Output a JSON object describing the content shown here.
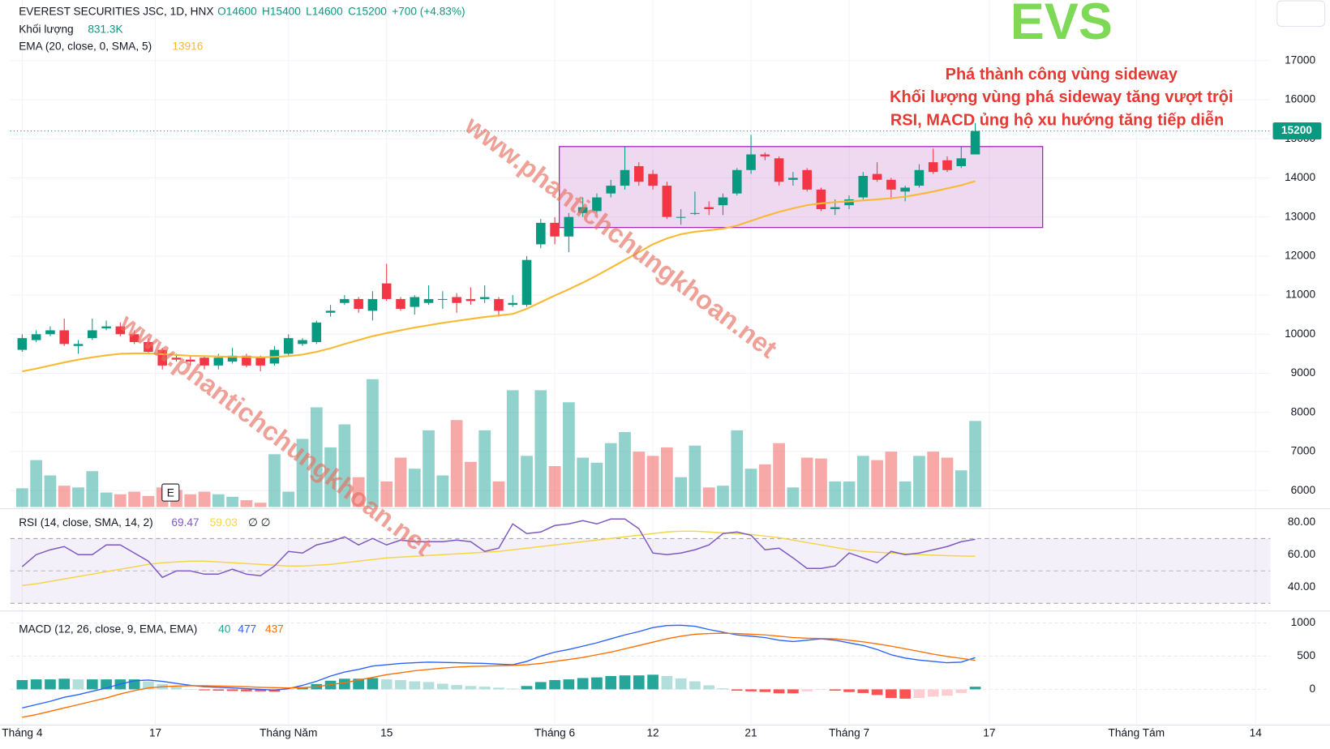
{
  "chart_data": {
    "type": "candlestick",
    "title": "EVEREST SECURITIES JSC, 1D, HNX",
    "ohlc_legend": [
      "O14600",
      "H15400",
      "L14600",
      "C15200",
      "+700 (+4.83%)"
    ],
    "ticker": "EVS",
    "annotations": [
      "Phá thành công vùng sideway",
      "Khối lượng vùng phá sideway tăng vượt trội",
      "RSI, MACD ủng hộ xu hướng tăng tiếp diễn"
    ],
    "watermark": "www.phantichchungkhoan.net",
    "event_marker": "E",
    "up_color": "#089981",
    "down_color": "#f23645",
    "open": [
      9600,
      9850,
      10000,
      10100,
      9700,
      9900,
      10150,
      10200,
      10000,
      9800,
      9600,
      9400,
      9350,
      9400,
      9200,
      9300,
      9450,
      9400,
      9250,
      9500,
      9750,
      9800,
      10550,
      10800,
      10900,
      10600,
      11300,
      10900,
      10700,
      10800,
      10900,
      10950,
      10900,
      10900,
      10900,
      10750,
      10750,
      12300,
      12850,
      12500,
      13100,
      13150,
      13600,
      13800,
      14300,
      14100,
      13800,
      13000,
      13100,
      13250,
      13300,
      13600,
      14200,
      14600,
      14500,
      13950,
      14200,
      13700,
      13200,
      13300,
      13500,
      14100,
      13950,
      13650,
      13800,
      14400,
      14450,
      14300,
      14600
    ],
    "high": [
      10000,
      10100,
      10200,
      10400,
      9850,
      10400,
      10350,
      10300,
      10100,
      9900,
      9650,
      9500,
      9450,
      9450,
      9500,
      9650,
      9500,
      9450,
      9700,
      10000,
      9900,
      10350,
      10750,
      11000,
      10950,
      11100,
      11800,
      10950,
      11000,
      11250,
      11100,
      11050,
      11200,
      11250,
      10950,
      11000,
      12000,
      12950,
      13000,
      13100,
      13500,
      13600,
      13950,
      14800,
      14400,
      14200,
      13900,
      13200,
      13650,
      13400,
      13600,
      14250,
      15100,
      14650,
      14550,
      14150,
      14250,
      13750,
      13450,
      13550,
      14150,
      14400,
      14000,
      13800,
      14350,
      14750,
      14550,
      14800,
      15400
    ],
    "low": [
      9550,
      9800,
      9950,
      9700,
      9500,
      9850,
      10100,
      9950,
      9750,
      9500,
      9100,
      9300,
      9200,
      9100,
      9100,
      9250,
      9150,
      9050,
      9200,
      9450,
      9700,
      9750,
      10450,
      10750,
      10550,
      10350,
      10850,
      10600,
      10500,
      10750,
      10650,
      10550,
      10750,
      10800,
      10450,
      10700,
      10700,
      12200,
      12300,
      12100,
      13000,
      13100,
      13500,
      13700,
      13800,
      13700,
      12950,
      12800,
      13050,
      13050,
      13050,
      13550,
      14100,
      14450,
      13800,
      13800,
      13650,
      13150,
      13050,
      13200,
      13450,
      13900,
      13450,
      13400,
      13750,
      14100,
      14150,
      14250,
      14600
    ],
    "close": [
      9900,
      10000,
      10100,
      9750,
      9750,
      10100,
      10200,
      10000,
      9800,
      9550,
      9200,
      9350,
      9300,
      9200,
      9400,
      9450,
      9200,
      9200,
      9600,
      9900,
      9850,
      10300,
      10600,
      10900,
      10650,
      10900,
      10900,
      10650,
      10950,
      10900,
      10900,
      10800,
      10850,
      10950,
      10600,
      10800,
      11900,
      12850,
      12500,
      13000,
      13250,
      13500,
      13800,
      14200,
      13900,
      13800,
      13000,
      13000,
      13100,
      13200,
      13500,
      14200,
      14600,
      14550,
      13900,
      14000,
      13700,
      13200,
      13250,
      13450,
      14050,
      13950,
      13700,
      13750,
      14200,
      14150,
      14200,
      14500,
      15200
    ],
    "ylim": [
      5580,
      18550
    ],
    "yticks": [
      6000,
      7000,
      8000,
      9000,
      10000,
      11000,
      12000,
      13000,
      14000,
      15000,
      16000,
      17000
    ],
    "xlim": [
      -0.85,
      89.05
    ],
    "xticks": [
      {
        "value": 0,
        "label": "Tháng 4"
      },
      {
        "value": 9.5,
        "label": "17"
      },
      {
        "value": 19,
        "label": "Tháng Năm"
      },
      {
        "value": 26,
        "label": "15"
      },
      {
        "value": 38,
        "label": "Tháng 6"
      },
      {
        "value": 45,
        "label": "12"
      },
      {
        "value": 52,
        "label": "21"
      },
      {
        "value": 59,
        "label": "Tháng 7"
      },
      {
        "value": 69,
        "label": "17"
      },
      {
        "value": 79.5,
        "label": "Tháng Tám"
      },
      {
        "value": 88,
        "label": "14"
      }
    ],
    "grid": true,
    "volume": {
      "name": "Khối lượng",
      "last_label": "831.3K",
      "values": [
        181000,
        453000,
        305000,
        206000,
        189000,
        346000,
        140000,
        123000,
        148000,
        107000,
        189000,
        165000,
        123000,
        148000,
        123000,
        99000,
        66000,
        41000,
        510000,
        148000,
        658000,
        963000,
        576000,
        798000,
        288000,
        1235000,
        247000,
        477000,
        370000,
        741000,
        305000,
        840000,
        436000,
        741000,
        247000,
        1128000,
        494000,
        1128000,
        395000,
        1012000,
        477000,
        428000,
        617000,
        724000,
        535000,
        494000,
        576000,
        288000,
        593000,
        189000,
        206000,
        741000,
        370000,
        412000,
        617000,
        189000,
        477000,
        469000,
        247000,
        247000,
        494000,
        453000,
        535000,
        247000,
        494000,
        535000,
        477000,
        354000,
        831300
      ]
    },
    "ema": {
      "name": "EMA (20, close, 0, SMA, 5)",
      "color": "#f9b935",
      "values": [
        9050,
        9120,
        9200,
        9280,
        9350,
        9410,
        9460,
        9500,
        9510,
        9510,
        9490,
        9470,
        9450,
        9440,
        9430,
        9420,
        9420,
        9410,
        9420,
        9440,
        9480,
        9550,
        9640,
        9750,
        9850,
        9950,
        10030,
        10100,
        10170,
        10230,
        10290,
        10340,
        10390,
        10440,
        10480,
        10520,
        10650,
        10820,
        10990,
        11150,
        11320,
        11500,
        11700,
        11900,
        12100,
        12300,
        12450,
        12560,
        12620,
        12660,
        12700,
        12780,
        12900,
        13020,
        13130,
        13220,
        13300,
        13350,
        13380,
        13400,
        13420,
        13450,
        13480,
        13520,
        13580,
        13650,
        13730,
        13810,
        13916
      ]
    },
    "rsi": {
      "title": "RSI (14, close, SMA, 14, 2)",
      "flags": "∅  ∅",
      "ylim": [
        26.3,
        86.8
      ],
      "yticks": [
        {
          "value": 40,
          "label": "40.00"
        },
        {
          "value": 60,
          "label": "60.00"
        },
        {
          "value": 80,
          "label": "80.00"
        }
      ],
      "series": [
        {
          "color": "#7e57c2",
          "values": [
            52.6,
            60,
            63,
            65,
            60,
            60,
            66,
            66,
            61,
            56,
            46,
            50,
            50,
            48,
            48,
            51,
            48,
            47,
            53,
            62,
            61,
            66,
            68,
            71,
            66,
            70,
            66,
            69,
            68,
            68,
            68,
            69,
            68,
            62,
            64,
            79,
            73,
            74,
            78,
            79,
            81,
            79,
            82,
            82,
            76,
            61,
            60,
            61,
            63,
            66,
            73,
            74,
            72,
            63,
            64,
            58,
            51.5,
            51.5,
            53,
            61,
            58,
            55,
            62,
            60,
            61,
            63,
            65,
            68,
            69.47
          ]
        },
        {
          "color": "#f5d547",
          "values": [
            41,
            42,
            43.5,
            45,
            46.5,
            48,
            49.5,
            51,
            52.5,
            54,
            55,
            55.5,
            56,
            56,
            55.5,
            55,
            54.5,
            54,
            53.5,
            53,
            53,
            53.5,
            54,
            55,
            56,
            57,
            58,
            58.5,
            59,
            59.5,
            60,
            60.5,
            61,
            61.5,
            62,
            63,
            64,
            65,
            66,
            67,
            68,
            69,
            70,
            71,
            72,
            73,
            74,
            74.5,
            74.5,
            74,
            73.5,
            73,
            72.5,
            71.5,
            70.5,
            69,
            67.5,
            66,
            64.5,
            63,
            62,
            61.5,
            61,
            60.5,
            60,
            59.7,
            59.4,
            59.2,
            59.03
          ]
        }
      ]
    },
    "macd": {
      "title": "MACD (12, 26, close, 9, EMA, EMA)",
      "ylim": [
        -526,
        1167
      ],
      "yticks": [
        0,
        500,
        1000
      ],
      "histogram": {
        "color": "#26a69a",
        "colors": [
          "#26a69a",
          "#b2dfdb",
          "#ff5252",
          "#ffcdd2"
        ],
        "values": [
          140,
          150,
          150,
          160,
          150,
          150,
          150,
          150,
          150,
          120,
          80,
          40,
          5,
          -15,
          -20,
          -25,
          -30,
          -30,
          -35,
          -10,
          35,
          80,
          130,
          160,
          160,
          170,
          150,
          140,
          120,
          110,
          85,
          65,
          50,
          40,
          25,
          10,
          50,
          110,
          140,
          150,
          170,
          180,
          200,
          210,
          210,
          220,
          200,
          165,
          120,
          60,
          15,
          -20,
          -30,
          -40,
          -60,
          -60,
          -30,
          -5,
          -20,
          -40,
          -55,
          -85,
          -130,
          -140,
          -130,
          -110,
          -95,
          -55,
          40
        ]
      },
      "series": [
        {
          "color": "#2962ff",
          "values": [
            -280,
            -230,
            -180,
            -120,
            -80,
            -30,
            20,
            80,
            130,
            140,
            120,
            90,
            60,
            40,
            30,
            20,
            10,
            0,
            -10,
            10,
            60,
            120,
            200,
            260,
            300,
            350,
            370,
            390,
            400,
            410,
            405,
            400,
            395,
            390,
            380,
            370,
            420,
            500,
            560,
            600,
            650,
            700,
            760,
            820,
            870,
            930,
            960,
            965,
            950,
            900,
            860,
            820,
            800,
            780,
            740,
            720,
            740,
            760,
            740,
            700,
            660,
            600,
            520,
            470,
            440,
            420,
            400,
            410,
            477
          ]
        },
        {
          "color": "#ff6d00",
          "values": [
            -420,
            -380,
            -330,
            -280,
            -230,
            -180,
            -130,
            -70,
            -20,
            20,
            40,
            50,
            55,
            55,
            50,
            45,
            40,
            30,
            25,
            20,
            25,
            40,
            70,
            100,
            140,
            180,
            220,
            250,
            280,
            300,
            320,
            335,
            345,
            350,
            355,
            360,
            370,
            390,
            420,
            450,
            480,
            520,
            560,
            610,
            660,
            710,
            760,
            800,
            830,
            840,
            845,
            840,
            830,
            820,
            800,
            780,
            770,
            765,
            760,
            740,
            715,
            685,
            650,
            610,
            570,
            530,
            495,
            465,
            437
          ]
        }
      ]
    }
  }
}
